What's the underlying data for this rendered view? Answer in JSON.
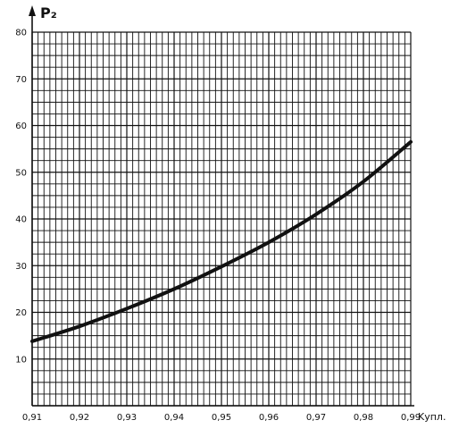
{
  "chart_data": {
    "type": "line",
    "title": "",
    "ylabel": "P₂",
    "xlabel": "Kупл.",
    "xlim": [
      0.91,
      0.99
    ],
    "ylim": [
      0,
      80
    ],
    "x_ticks": [
      0.91,
      0.92,
      0.93,
      0.94,
      0.95,
      0.96,
      0.97,
      0.98,
      0.99
    ],
    "x_tick_labels": [
      "0,91",
      "0,92",
      "0,93",
      "0,94",
      "0,95",
      "0,96",
      "0,97",
      "0,98",
      "0,99"
    ],
    "y_ticks": [
      10,
      20,
      30,
      40,
      50,
      60,
      70,
      80
    ],
    "y_tick_labels": [
      "10",
      "20",
      "30",
      "40",
      "50",
      "60",
      "70",
      "80"
    ],
    "grid": true,
    "series": [
      {
        "x": [
          0.91,
          0.92,
          0.93,
          0.94,
          0.95,
          0.96,
          0.97,
          0.98,
          0.99
        ],
        "y": [
          13.8,
          17,
          20.8,
          25,
          29.8,
          35,
          41,
          48,
          56.5
        ]
      }
    ],
    "colors": {
      "ink": "#111111",
      "background": "#ffffff"
    }
  }
}
